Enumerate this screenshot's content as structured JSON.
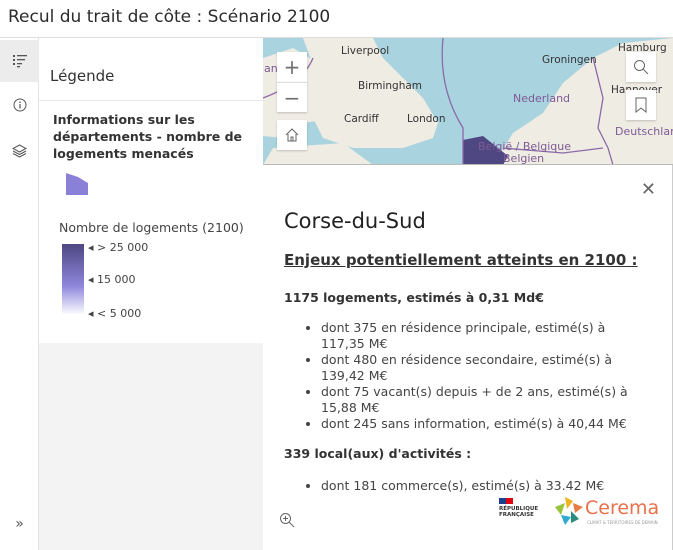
{
  "app": {
    "title": "Recul du trait de côte : Scénario 2100"
  },
  "rail": {
    "items": [
      {
        "icon": "legend-icon"
      },
      {
        "icon": "info-icon"
      },
      {
        "icon": "layers-icon"
      }
    ],
    "expand_icon": "»"
  },
  "legend": {
    "title": "Légende",
    "layer_title": "Informations sur les départements - nombre de logements menacés",
    "swatch_color": "#8a80d8",
    "ramp_title": "Nombre de logements (2100)",
    "ramp_labels": [
      "> 25 000",
      "15 000",
      "< 5 000"
    ],
    "ramp_colors": [
      "#4e4781",
      "#8f86dd",
      "#fafaff"
    ]
  },
  "map": {
    "cities": [
      "Liverpool",
      "Birmingham",
      "Cardiff",
      "London",
      "Groningen",
      "Hamburg",
      "Hannover"
    ],
    "countries": [
      "Nederland",
      "België / Belgique",
      "Deutschlar",
      "lan",
      "Belgien"
    ],
    "colors": {
      "sea": "#a9d3df",
      "land": "#efece4",
      "highlight": "#4e4781"
    }
  },
  "popup": {
    "title": "Corse-du-Sud",
    "subtitle": "Enjeux potentiellement atteints en 2100",
    "subtitle_colon": " :",
    "logements_head": "1175  logements, estimés à 0,31 Md€",
    "logements_items": [
      "dont 375 en résidence principale, estimé(s) à 117,35 M€",
      "dont 480 en résidence secondaire, estimé(s) à 139,42 M€",
      "dont 75 vacant(s) depuis + de 2 ans, estimé(s) à 15,88 M€",
      "dont 245 sans information, estimé(s) à 40,44 M€"
    ],
    "activites_head": "339 local(aux) d'activités :",
    "activites_items": [
      "dont 181 commerce(s), estimé(s) à 33.42 M€"
    ],
    "logo_rf": "RÉPUBLIQUE FRANÇAISE",
    "logo_cerema": "Cerema",
    "logo_cerema_sub": "CLIMAT & TERRITOIRES DE DEMAIN"
  }
}
